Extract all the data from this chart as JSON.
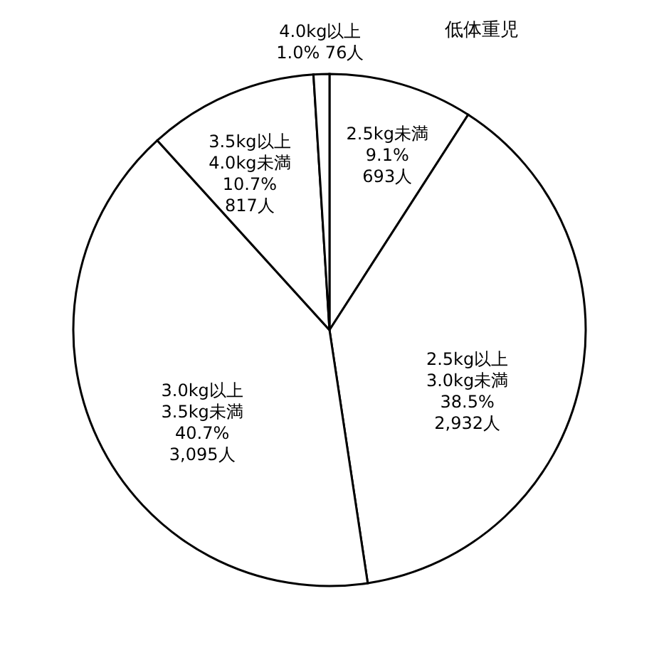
{
  "chart_data": {
    "type": "pie",
    "categories": [
      "2.5kg未満",
      "2.5kg以上\n3.0kg未満",
      "3.0kg以上\n3.5kg未満",
      "3.5kg以上\n4.0kg未満",
      "4.0kg以上"
    ],
    "values": [
      693,
      2932,
      3095,
      817,
      76
    ],
    "value_labels": [
      "9.1%\n693人",
      "38.5%\n2,932人",
      "40.7%\n3,095人",
      "10.7%\n817人",
      "1.0% 76人"
    ],
    "colors": [
      "#ffffff",
      "#ffffff",
      "#ffffff",
      "#ffffff",
      "#ffffff"
    ],
    "annotations": [
      "低体重児"
    ],
    "legend": false
  }
}
